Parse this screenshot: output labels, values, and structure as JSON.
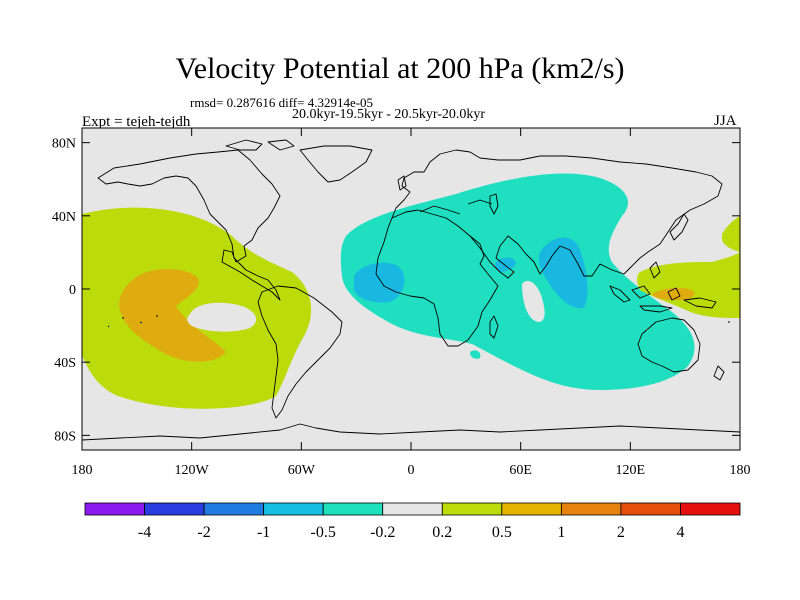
{
  "title": "Velocity Potential at 200 hPa (km2/s)",
  "stats": "rmsd= 0.287616 diff= 4.32914e-05",
  "period": "20.0kyr-19.5kyr - 20.5kyr-20.0kyr",
  "expt": "Expt = tejeh-tejdh",
  "season": "JJA",
  "lat_labels": [
    {
      "lat": 80,
      "label": "80N"
    },
    {
      "lat": 40,
      "label": "40N"
    },
    {
      "lat": 0,
      "label": "0"
    },
    {
      "lat": -40,
      "label": "40S"
    },
    {
      "lat": -80,
      "label": "80S"
    }
  ],
  "lon_labels": [
    {
      "lon": -180,
      "label": "180"
    },
    {
      "lon": -120,
      "label": "120W"
    },
    {
      "lon": -60,
      "label": "60W"
    },
    {
      "lon": 0,
      "label": "0"
    },
    {
      "lon": 60,
      "label": "60E"
    },
    {
      "lon": 120,
      "label": "120E"
    },
    {
      "lon": 180,
      "label": "180"
    }
  ],
  "colorbar": {
    "levels": [
      "-4",
      "-2",
      "-1",
      "-0.5",
      "-0.2",
      "0.2",
      "0.5",
      "1",
      "2",
      "4"
    ],
    "colors": [
      "#8a1aee",
      "#2a3de0",
      "#1f7be0",
      "#17bfe2",
      "#1fe0bd",
      "#e6e6e6",
      "#bbdc0a",
      "#e3b400",
      "#e6830e",
      "#e4500c",
      "#e60f0f"
    ]
  },
  "colors": {
    "neutral": "#e6e6e6",
    "pos_light": "#bbdc0a",
    "pos_mid": "#dfac10",
    "neg_light": "#1fdfc0",
    "neg_mid": "#18b8e0"
  }
}
